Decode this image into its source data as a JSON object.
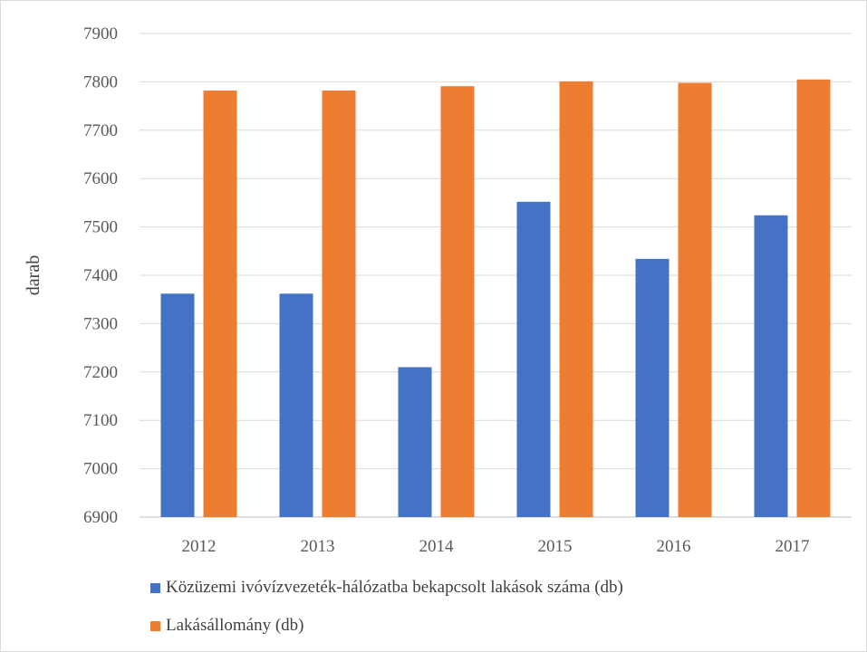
{
  "chart_data": {
    "type": "bar",
    "title": "",
    "xlabel": "",
    "ylabel": "darab",
    "ylim": [
      6900,
      7900
    ],
    "yticks": [
      6900,
      7000,
      7100,
      7200,
      7300,
      7400,
      7500,
      7600,
      7700,
      7800,
      7900
    ],
    "grid": true,
    "legend_position": "bottom",
    "categories": [
      "2012",
      "2013",
      "2014",
      "2015",
      "2016",
      "2017"
    ],
    "series": [
      {
        "name": "Közüzemi ivóvízvezeték-hálózatba bekapcsolt lakások száma (db)",
        "color": "#4472c4",
        "values": [
          7362,
          7362,
          7210,
          7552,
          7434,
          7524
        ]
      },
      {
        "name": "Lakásállomány (db)",
        "color": "#ed7d31",
        "values": [
          7782,
          7782,
          7791,
          7801,
          7798,
          7805
        ]
      }
    ]
  }
}
